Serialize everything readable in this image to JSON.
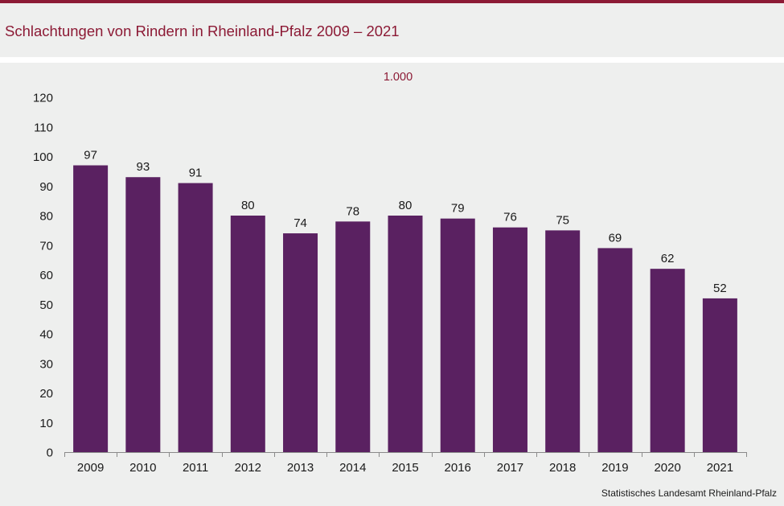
{
  "header": {
    "title": "Schlachtungen von Rindern in Rheinland-Pfalz 2009 – 2021"
  },
  "colors": {
    "accent": "#8c1a35",
    "bar": "#5a2161",
    "background": "#eeefee"
  },
  "chart_data": {
    "type": "bar",
    "title": "Schlachtungen von Rindern in Rheinland-Pfalz 2009 – 2021",
    "unit_label": "1.000",
    "xlabel": "",
    "ylabel": "",
    "categories": [
      "2009",
      "2010",
      "2011",
      "2012",
      "2013",
      "2014",
      "2015",
      "2016",
      "2017",
      "2018",
      "2019",
      "2020",
      "2021"
    ],
    "values": [
      97,
      93,
      91,
      80,
      74,
      78,
      80,
      79,
      76,
      75,
      69,
      62,
      52
    ],
    "data_labels": [
      "97",
      "93",
      "91",
      "80",
      "74",
      "78",
      "80",
      "79",
      "76",
      "75",
      "69",
      "62",
      "52"
    ],
    "ylim": [
      0,
      120
    ],
    "yticks": [
      "0",
      "10",
      "20",
      "30",
      "40",
      "50",
      "60",
      "70",
      "80",
      "90",
      "100",
      "110",
      "120"
    ],
    "grid": false,
    "legend": "none"
  },
  "footer": {
    "source": "Statistisches Landesamt  Rheinland-Pfalz"
  }
}
